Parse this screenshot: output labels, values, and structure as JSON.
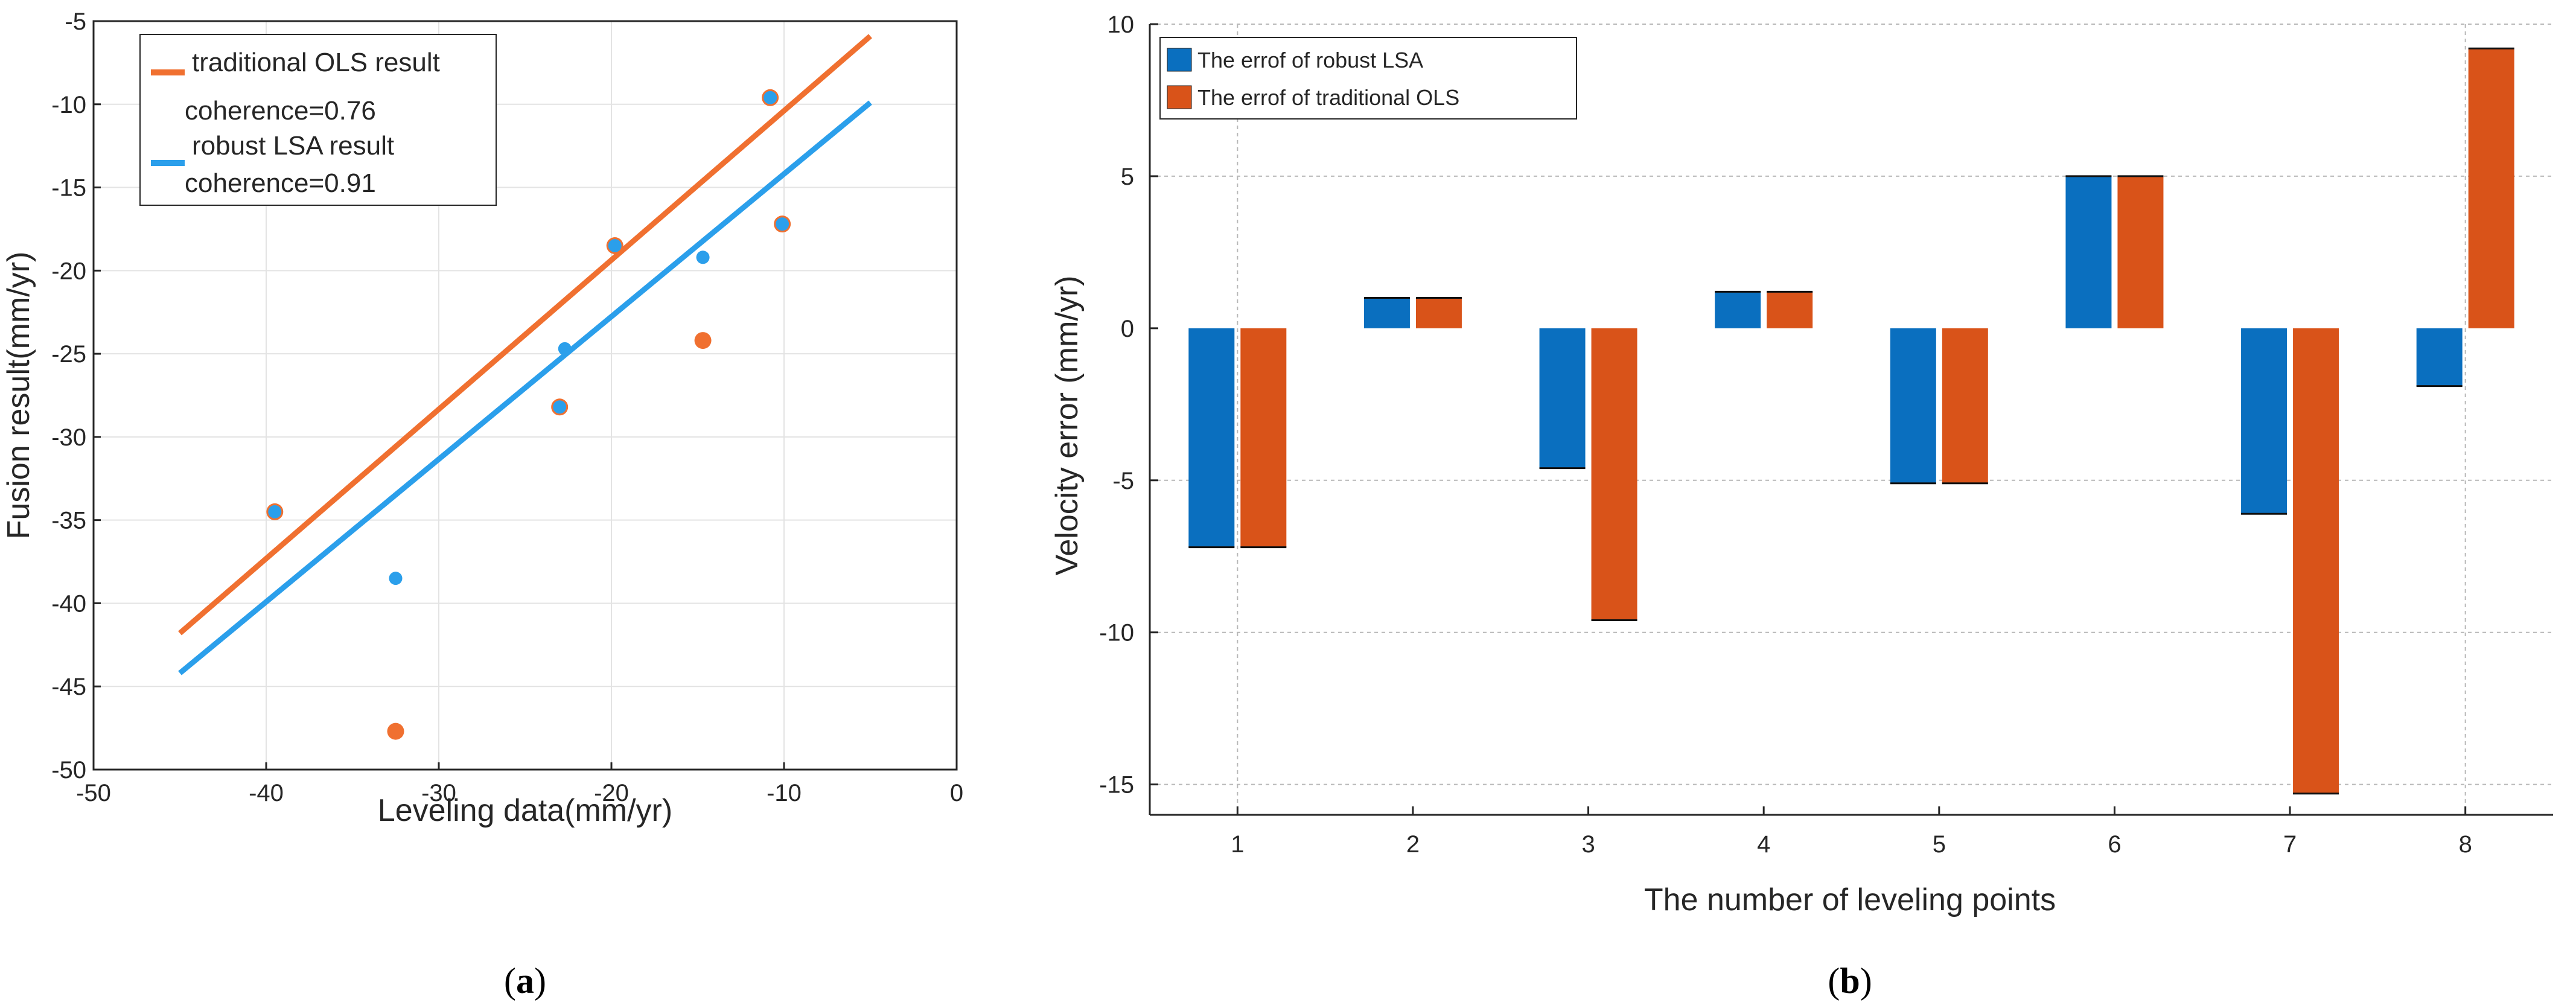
{
  "chart_data": [
    {
      "type": "scatter",
      "panel": "a",
      "xlabel": "Leveling data(mm/yr)",
      "ylabel": "Fusion result(mm/yr)",
      "xlim": [
        -50,
        0
      ],
      "ylim": [
        -50,
        -5
      ],
      "xticks": [
        -50,
        -40,
        -30,
        -20,
        -10,
        0
      ],
      "yticks": [
        -50,
        -45,
        -40,
        -35,
        -30,
        -25,
        -20,
        -15,
        -10,
        -5
      ],
      "grid": true,
      "legend_placement": "top-left",
      "series": [
        {
          "name": "traditional OLS result",
          "note": "coherence=0.76",
          "color": "#F07030",
          "line": {
            "x": [
              -45,
              -5
            ],
            "y": [
              -41.8,
              -5.9
            ]
          },
          "points": {
            "x": [
              -39.5,
              -32.5,
              -23.0,
              -19.8,
              -14.7,
              -10.8,
              -10.1
            ],
            "y": [
              -34.5,
              -47.7,
              -28.2,
              -18.5,
              -24.2,
              -9.6,
              -17.2
            ]
          }
        },
        {
          "name": "robust LSA result",
          "note": "coherence=0.91",
          "color": "#2B9FEB",
          "line": {
            "x": [
              -45,
              -5
            ],
            "y": [
              -44.2,
              -9.9
            ]
          },
          "points": {
            "x": [
              -39.5,
              -32.5,
              -23.0,
              -22.7,
              -19.8,
              -14.7,
              -10.8,
              -10.1
            ],
            "y": [
              -34.5,
              -38.5,
              -28.2,
              -24.7,
              -18.5,
              -19.2,
              -9.6,
              -17.2
            ]
          }
        }
      ],
      "caption": "a"
    },
    {
      "type": "bar",
      "panel": "b",
      "xlabel": "The number of leveling points",
      "ylabel": "Velocity error (mm/yr)",
      "categories": [
        "1",
        "2",
        "3",
        "4",
        "5",
        "6",
        "7",
        "8"
      ],
      "ylim": [
        -16,
        10
      ],
      "yticks": [
        -15,
        -10,
        -5,
        0,
        5,
        10
      ],
      "grid": true,
      "legend_placement": "top-left",
      "series": [
        {
          "name": "The errof of robust LSA",
          "color": "#0A6FBF",
          "values": [
            -7.2,
            1.0,
            -4.6,
            1.2,
            -5.1,
            5.0,
            -6.1,
            -1.9
          ]
        },
        {
          "name": "The errof of traditional OLS",
          "color": "#D95319",
          "values": [
            -7.2,
            1.0,
            -9.6,
            1.2,
            -5.1,
            5.0,
            -15.3,
            9.2
          ]
        }
      ],
      "caption": "b"
    }
  ]
}
